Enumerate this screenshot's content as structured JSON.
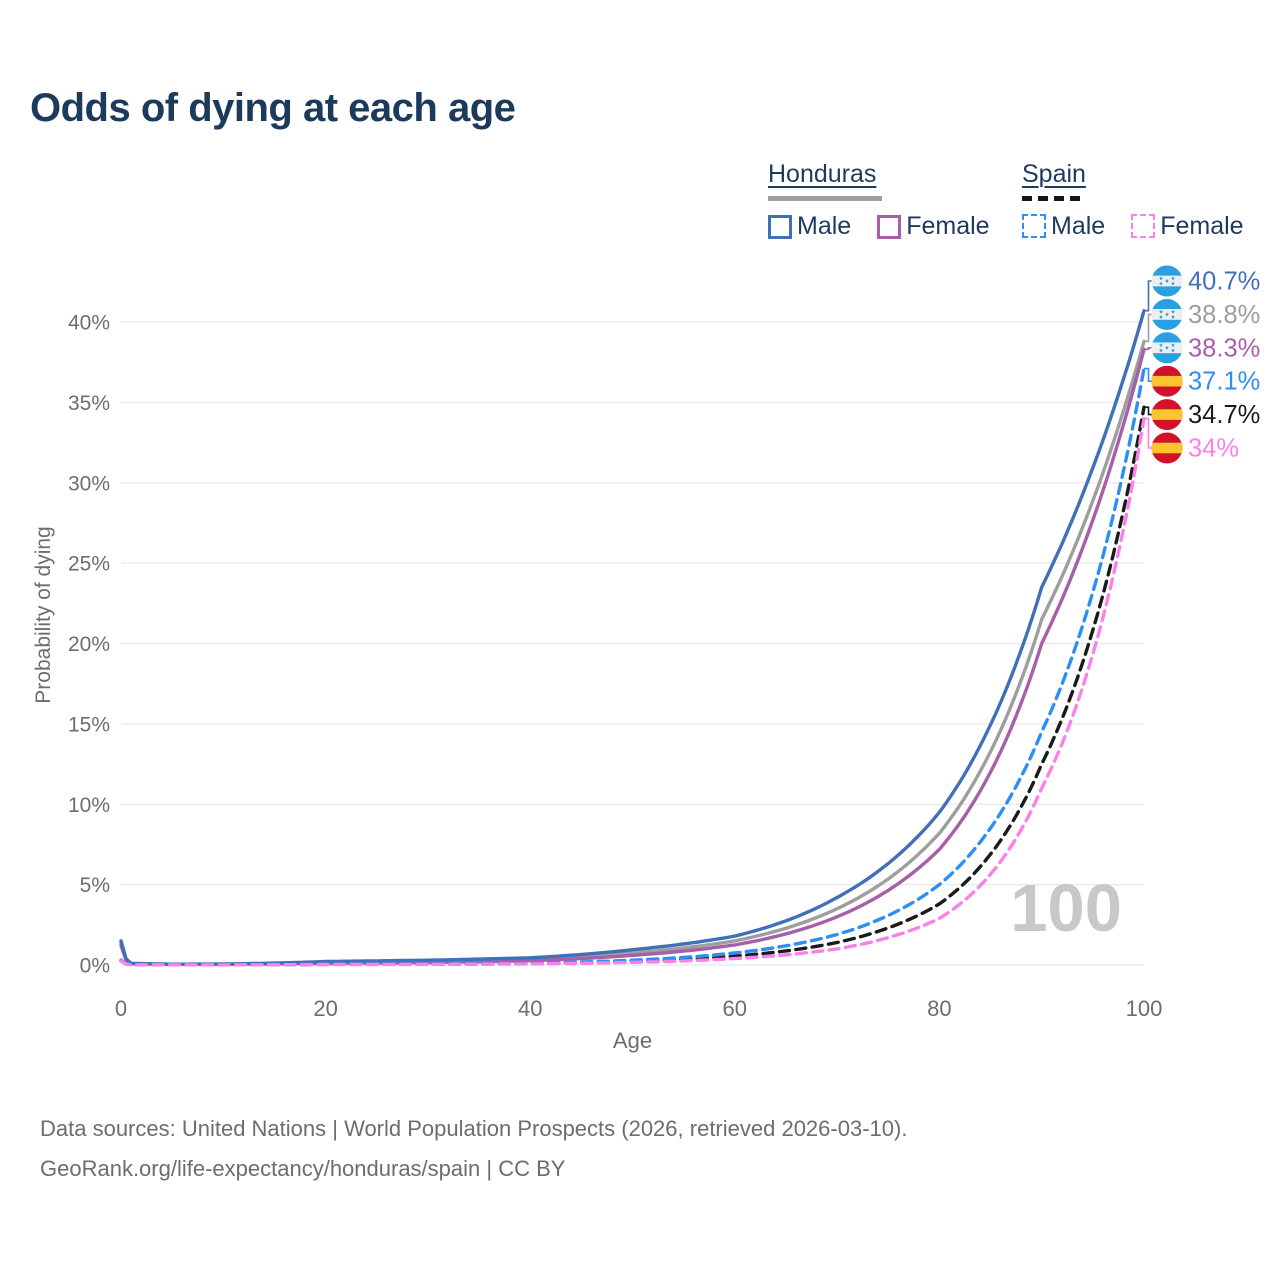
{
  "title": "Odds of dying at each age",
  "age_counter": "100",
  "legend": {
    "groups": [
      {
        "label": "Honduras",
        "swatch_style": "solid",
        "swatch_color": "#a0a0a0",
        "items": [
          {
            "label": "Male",
            "color": "#4170b8",
            "box_style": "solid"
          },
          {
            "label": "Female",
            "color": "#a75fa9",
            "box_style": "solid"
          }
        ]
      },
      {
        "label": "Spain",
        "swatch_style": "dashed",
        "swatch_color": "#161616",
        "items": [
          {
            "label": "Male",
            "color": "#2f8ef5",
            "box_style": "dashed"
          },
          {
            "label": "Female",
            "color": "#fb80e9",
            "box_style": "dashed"
          }
        ]
      }
    ]
  },
  "axes": {
    "x": {
      "label": "Age",
      "ticks": [
        0,
        20,
        40,
        60,
        80,
        100
      ]
    },
    "y": {
      "label": "Probability of dying",
      "ticks": [
        0,
        5,
        10,
        15,
        20,
        25,
        30,
        35,
        40
      ],
      "tick_suffix": "%"
    }
  },
  "footer": {
    "line1": "Data sources: United Nations | World Population Prospects (2026, retrieved 2026-03-10).",
    "line2": "GeoRank.org/life-expectancy/honduras/spain | CC BY"
  },
  "flags": {
    "honduras": {
      "band": "#2aa0e1",
      "field": "#eeeeee"
    },
    "spain": {
      "band": "#d2112b",
      "field": "#fcc42e"
    }
  },
  "chart_data": {
    "type": "line",
    "title": "Odds of dying at each age",
    "xlabel": "Age",
    "ylabel": "Probability of dying",
    "xlim": [
      0,
      100
    ],
    "ylim": [
      0,
      42.5
    ],
    "grid": "horizontal",
    "legend_position": "top-right",
    "age_marker": "100",
    "series": [
      {
        "name": "Honduras Male",
        "country": "Honduras",
        "sex": "Male",
        "style": "solid",
        "color": "#4170b8",
        "flag": "honduras",
        "end_label": "40.7%",
        "end_value": 40.7,
        "points_age_pct": [
          [
            0,
            1.5
          ],
          [
            1,
            0.1
          ],
          [
            5,
            0.05
          ],
          [
            10,
            0.06
          ],
          [
            15,
            0.12
          ],
          [
            20,
            0.22
          ],
          [
            30,
            0.3
          ],
          [
            40,
            0.45
          ],
          [
            50,
            0.95
          ],
          [
            60,
            1.8
          ],
          [
            70,
            4.2
          ],
          [
            80,
            9.5
          ],
          [
            90,
            23.5
          ],
          [
            100,
            40.7
          ]
        ]
      },
      {
        "name": "Honduras (all)",
        "country": "Honduras",
        "sex": "All",
        "style": "solid",
        "color": "#9e9e9e",
        "flag": "honduras",
        "end_label": "38.8%",
        "end_value": 38.8,
        "points_age_pct": [
          [
            0,
            1.35
          ],
          [
            1,
            0.09
          ],
          [
            5,
            0.045
          ],
          [
            10,
            0.05
          ],
          [
            15,
            0.1
          ],
          [
            20,
            0.16
          ],
          [
            30,
            0.22
          ],
          [
            40,
            0.35
          ],
          [
            50,
            0.75
          ],
          [
            60,
            1.5
          ],
          [
            70,
            3.5
          ],
          [
            80,
            8.2
          ],
          [
            90,
            21.5
          ],
          [
            100,
            38.8
          ]
        ]
      },
      {
        "name": "Honduras Female",
        "country": "Honduras",
        "sex": "Female",
        "style": "solid",
        "color": "#a75fa9",
        "flag": "honduras",
        "end_label": "38.3%",
        "end_value": 38.3,
        "points_age_pct": [
          [
            0,
            1.2
          ],
          [
            1,
            0.08
          ],
          [
            5,
            0.04
          ],
          [
            10,
            0.045
          ],
          [
            15,
            0.07
          ],
          [
            20,
            0.1
          ],
          [
            30,
            0.15
          ],
          [
            40,
            0.27
          ],
          [
            50,
            0.6
          ],
          [
            60,
            1.25
          ],
          [
            70,
            3.0
          ],
          [
            80,
            7.2
          ],
          [
            90,
            20.0
          ],
          [
            100,
            38.3
          ]
        ]
      },
      {
        "name": "Spain Male",
        "country": "Spain",
        "sex": "Male",
        "style": "dashed",
        "color": "#2f8ef5",
        "flag": "spain",
        "end_label": "37.1%",
        "end_value": 37.1,
        "points_age_pct": [
          [
            0,
            0.3
          ],
          [
            1,
            0.02
          ],
          [
            10,
            0.012
          ],
          [
            20,
            0.05
          ],
          [
            30,
            0.07
          ],
          [
            40,
            0.12
          ],
          [
            50,
            0.3
          ],
          [
            60,
            0.75
          ],
          [
            70,
            1.9
          ],
          [
            80,
            5.0
          ],
          [
            90,
            14.5
          ],
          [
            100,
            37.1
          ]
        ]
      },
      {
        "name": "Spain (all)",
        "country": "Spain",
        "sex": "All",
        "style": "dashed",
        "color": "#1a1a1a",
        "flag": "spain",
        "end_label": "34.7%",
        "end_value": 34.7,
        "points_age_pct": [
          [
            0,
            0.28
          ],
          [
            1,
            0.018
          ],
          [
            10,
            0.01
          ],
          [
            20,
            0.04
          ],
          [
            30,
            0.05
          ],
          [
            40,
            0.09
          ],
          [
            50,
            0.22
          ],
          [
            60,
            0.55
          ],
          [
            70,
            1.4
          ],
          [
            80,
            3.8
          ],
          [
            90,
            12.5
          ],
          [
            100,
            34.7
          ]
        ]
      },
      {
        "name": "Spain Female",
        "country": "Spain",
        "sex": "Female",
        "style": "dashed",
        "color": "#fb80e9",
        "flag": "spain",
        "end_label": "34%",
        "end_value": 34.0,
        "points_age_pct": [
          [
            0,
            0.25
          ],
          [
            1,
            0.015
          ],
          [
            10,
            0.009
          ],
          [
            20,
            0.03
          ],
          [
            30,
            0.04
          ],
          [
            40,
            0.07
          ],
          [
            50,
            0.16
          ],
          [
            60,
            0.4
          ],
          [
            70,
            1.0
          ],
          [
            80,
            2.9
          ],
          [
            90,
            11.0
          ],
          [
            100,
            34.0
          ]
        ]
      }
    ]
  }
}
